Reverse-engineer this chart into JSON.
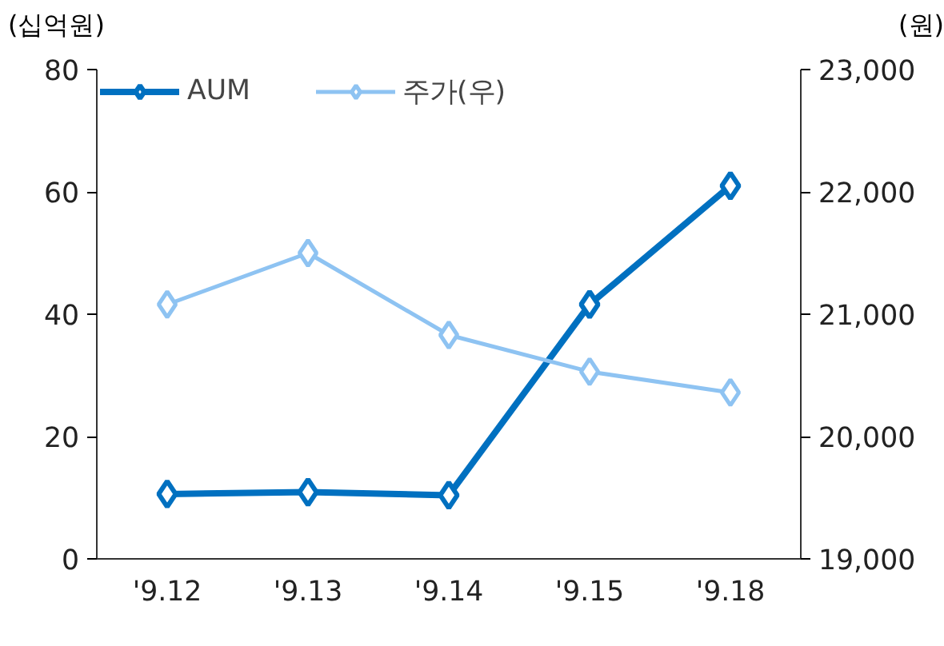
{
  "chart_data": {
    "type": "line",
    "categories": [
      "'9.12",
      "'9.13",
      "'9.14",
      "'9.15",
      "'9.18"
    ],
    "ylabel": "(십억원)",
    "y2label": "(원)",
    "series": [
      {
        "name": "AUM",
        "color": "#0070c0",
        "values": [
          10.6,
          10.9,
          10.4,
          41.6,
          61.0
        ]
      },
      {
        "name": "주가(우)",
        "color": "#8ec3f2",
        "axis": "y2",
        "values": [
          21080,
          21500,
          20830,
          20530,
          20360
        ]
      }
    ],
    "ylim": [
      0,
      80
    ],
    "yticks": [
      0,
      20,
      40,
      60,
      80
    ],
    "y2lim": [
      19000,
      23000
    ],
    "y2ticks": [
      {
        "value": 19000,
        "label": "19,000"
      },
      {
        "value": 20000,
        "label": "20,000"
      },
      {
        "value": 21000,
        "label": "21,000"
      },
      {
        "value": 22000,
        "label": "22,000"
      },
      {
        "value": 23000,
        "label": "23,000"
      }
    ],
    "marker": "diamond",
    "line_style": "solid",
    "grid": false,
    "legend": "top left"
  }
}
